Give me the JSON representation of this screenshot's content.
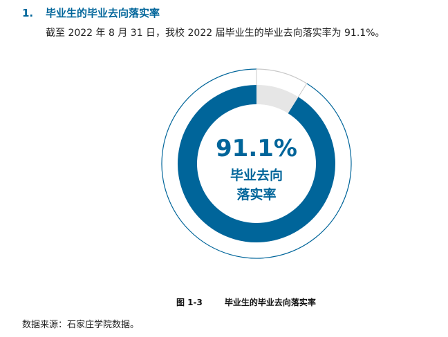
{
  "heading": {
    "number": "1.",
    "title": "毕业生的毕业去向落实率"
  },
  "paragraph": "截至 2022 年 8 月 31 日，我校 2022 届毕业生的毕业去向落实率为 91.1%。",
  "chart_data": {
    "type": "pie",
    "variant": "donut",
    "values": [
      91.1,
      8.9
    ],
    "center_value": "91.1%",
    "center_label_line1": "毕业去向",
    "center_label_line2": "落实率",
    "colors": [
      "#00659a",
      "#e6e6e6"
    ]
  },
  "caption": {
    "figure": "图 1-3",
    "title": "毕业生的毕业去向落实率"
  },
  "source": "数据来源：石家庄学院数据。"
}
